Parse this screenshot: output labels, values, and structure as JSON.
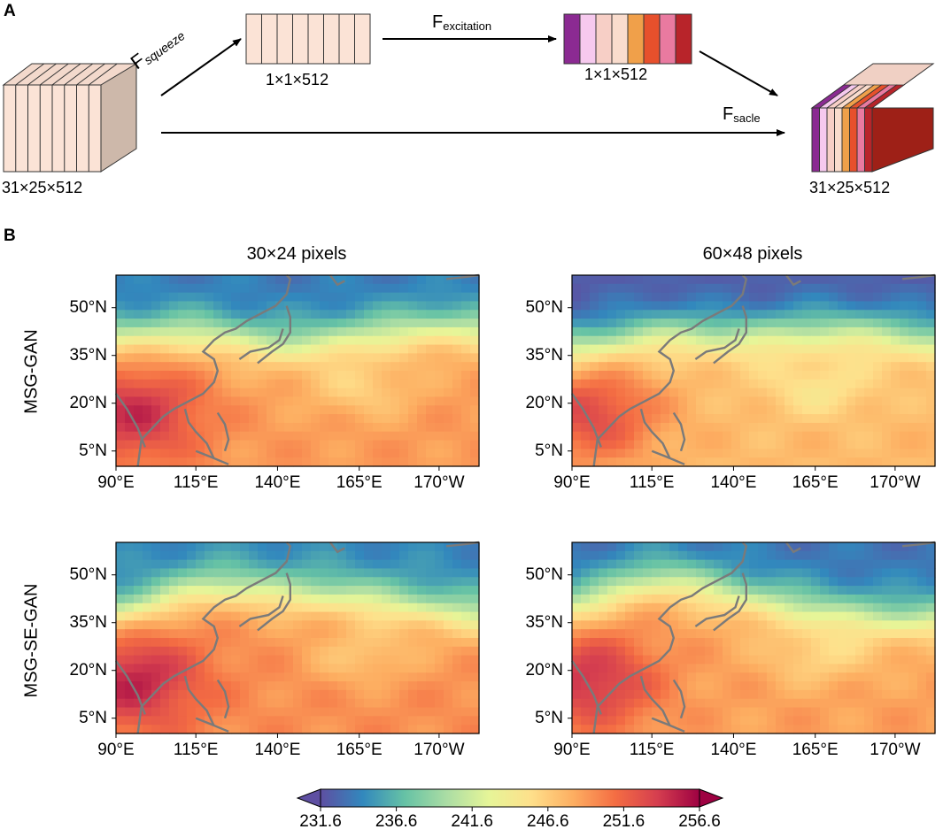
{
  "panel_a": {
    "letter": "A",
    "input_label": "31×25×512",
    "squeeze_label": "F",
    "squeeze_sub": "squeeze",
    "pooled_label": "1×1×512",
    "excitation_label": "F",
    "excitation_sub": "excitation",
    "weights_label": "1×1×512",
    "scale_label": "F",
    "scale_sub": "sacle",
    "output_label": "31×25×512",
    "weight_colors": [
      "#8b2a92",
      "#f6c9ee",
      "#f7cfc6",
      "#f9dccd",
      "#f0a04a",
      "#e7502c",
      "#e97aa0",
      "#b8242a"
    ],
    "plain_color": "#fbe3d6"
  },
  "panel_b": {
    "letter": "B",
    "column_titles": [
      "30×24 pixels",
      "60×48 pixels"
    ],
    "row_titles": [
      "MSG-GAN",
      "MSG-SE-GAN"
    ],
    "lat_ticks": [
      "50°N",
      "35°N",
      "20°N",
      "5°N"
    ],
    "lon_ticks": [
      "90°E",
      "115°E",
      "140°E",
      "165°E",
      "170°W"
    ],
    "colorbar_ticks": [
      "231.6",
      "236.6",
      "241.6",
      "246.6",
      "251.6",
      "256.6"
    ],
    "colorbar_colors": [
      "#5e4fa2",
      "#3288bd",
      "#66c2a5",
      "#abdda4",
      "#e6f598",
      "#fee08b",
      "#fdae61",
      "#f46d43",
      "#d53e4f",
      "#9e0142"
    ]
  }
}
